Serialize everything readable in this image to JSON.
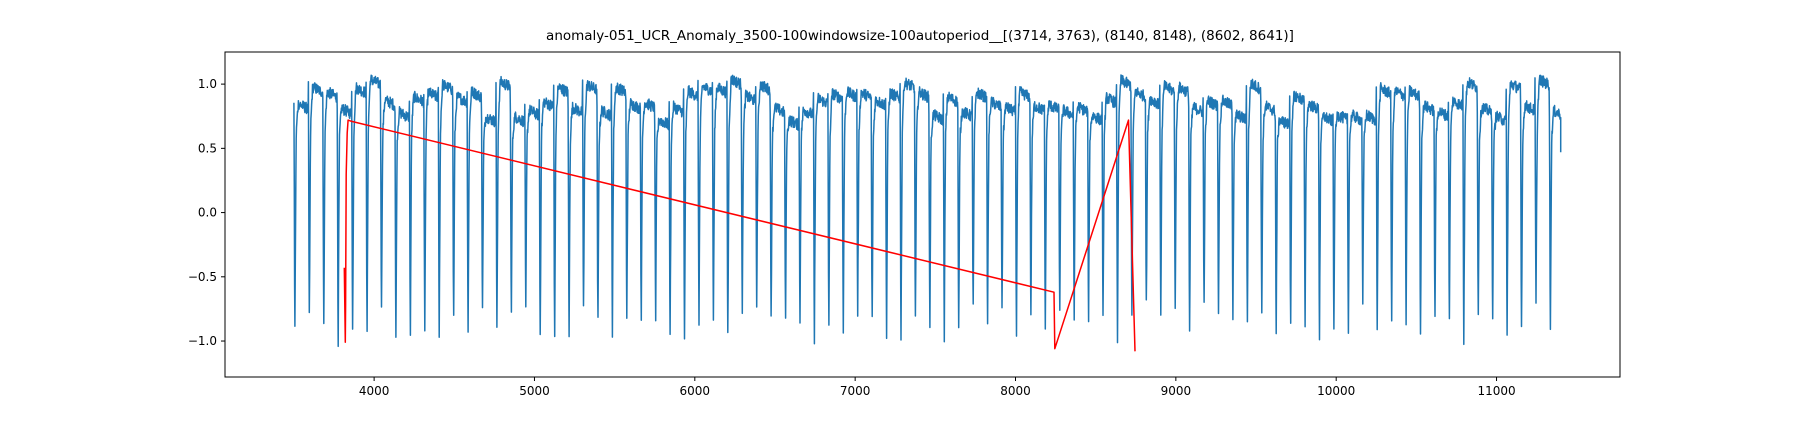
{
  "chart_data": {
    "type": "line",
    "title": "anomaly-051_UCR_Anomaly_3500-100windowsize-100autoperiod__[(3714, 3763), (8140, 8148), (8602, 8641)]",
    "xlabel": "",
    "ylabel": "",
    "xlim": [
      3070,
      11770
    ],
    "ylim": [
      -1.28,
      1.25
    ],
    "x_ticks": [
      4000,
      5000,
      6000,
      7000,
      8000,
      9000,
      10000,
      11000
    ],
    "x_tick_labels": [
      "4000",
      "5000",
      "6000",
      "7000",
      "8000",
      "9000",
      "10000",
      "11000"
    ],
    "y_ticks": [
      1.0,
      0.5,
      0.0,
      -0.5,
      -1.0
    ],
    "y_tick_labels": [
      "1.0",
      "0.5",
      "0.0",
      "−0.5",
      "−1.0"
    ],
    "grid": false,
    "series": [
      {
        "color": "#1f77b4",
        "style": "periodic-signal",
        "x_start": 3500,
        "x_end": 11400,
        "period": 90,
        "plateau": 0.8,
        "trough": -1.0,
        "end_value": 0.47
      },
      {
        "color": "#ff0000",
        "style": "segment",
        "x": [
          3814,
          3820,
          3822,
          3826,
          3832,
          3838,
          3860,
          8240,
          8245,
          8705,
          8745
        ],
        "y": [
          -0.43,
          -1.01,
          -0.72,
          0.3,
          0.62,
          0.72,
          0.71,
          -0.62,
          -1.06,
          0.72,
          -1.08
        ]
      }
    ]
  },
  "colors": {
    "signal": "#1f77b4",
    "anomaly": "#ff0000"
  }
}
